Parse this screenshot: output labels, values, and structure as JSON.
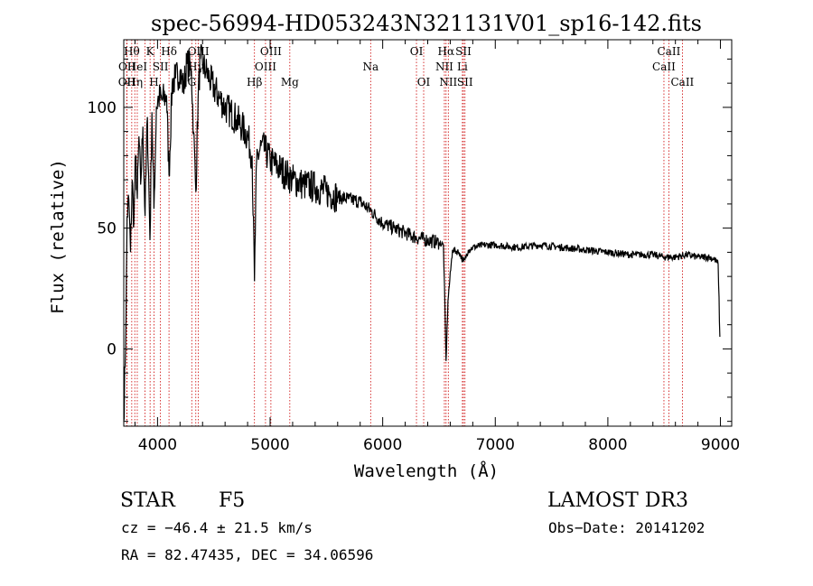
{
  "chart_data": {
    "type": "line",
    "title": "spec-56994-HD053243N321131V01_sp16-142.fits",
    "xlabel": "Wavelength (Å)",
    "ylabel": "Flux (relative)",
    "xlim": [
      3700,
      9100
    ],
    "ylim": [
      -32,
      128
    ],
    "xticks": [
      4000,
      5000,
      6000,
      7000,
      8000,
      9000
    ],
    "xtick_labels": [
      "4000",
      "5000",
      "6000",
      "7000",
      "8000",
      "9000"
    ],
    "yticks": [
      0,
      50,
      100
    ],
    "ytick_labels": [
      "0",
      "50",
      "100"
    ],
    "series": [
      {
        "name": "spectrum",
        "x": [
          3700,
          3720,
          3730,
          3745,
          3760,
          3775,
          3790,
          3805,
          3820,
          3835,
          3850,
          3870,
          3889,
          3910,
          3933,
          3950,
          3968,
          3990,
          4010,
          4040,
          4080,
          4102,
          4130,
          4160,
          4200,
          4230,
          4260,
          4300,
          4320,
          4340,
          4360,
          4380,
          4400,
          4430,
          4460,
          4500,
          4550,
          4600,
          4650,
          4700,
          4750,
          4800,
          4840,
          4861,
          4880,
          4920,
          4960,
          5000,
          5050,
          5100,
          5150,
          5200,
          5300,
          5400,
          5500,
          5600,
          5700,
          5800,
          5900,
          6000,
          6100,
          6200,
          6300,
          6400,
          6500,
          6540,
          6563,
          6580,
          6620,
          6680,
          6717,
          6731,
          6760,
          6800,
          6900,
          7000,
          7200,
          7400,
          7600,
          7800,
          8000,
          8200,
          8400,
          8500,
          8600,
          8700,
          8800,
          8900,
          8950,
          8980,
          8995
        ],
        "y": [
          -30,
          12,
          55,
          62,
          40,
          70,
          52,
          80,
          62,
          88,
          68,
          92,
          55,
          96,
          45,
          98,
          58,
          100,
          104,
          103,
          105,
          72,
          110,
          112,
          115,
          108,
          118,
          116,
          90,
          65,
          104,
          120,
          118,
          115,
          112,
          108,
          104,
          100,
          98,
          95,
          92,
          88,
          80,
          28,
          78,
          84,
          82,
          78,
          76,
          74,
          72,
          70,
          68,
          67,
          65,
          63,
          62,
          61,
          57,
          52,
          50,
          48,
          46,
          45,
          44,
          43,
          -5,
          20,
          41,
          40,
          36,
          37,
          41,
          42,
          43,
          43,
          42,
          43,
          42,
          41,
          40,
          39,
          39,
          38,
          38,
          39,
          38,
          38,
          37,
          35,
          5
        ]
      }
    ],
    "lines": [
      {
        "x": 3727,
        "label": "OII",
        "row": 2
      },
      {
        "x": 3729,
        "label": "OII",
        "row": 1
      },
      {
        "x": 3771,
        "label": "Hθ",
        "row": 0
      },
      {
        "x": 3798,
        "label": "Hη",
        "row": 2
      },
      {
        "x": 3820,
        "label": "HeI",
        "row": 1
      },
      {
        "x": 3889,
        "label": "",
        "row": 1
      },
      {
        "x": 3934,
        "label": "K",
        "row": 0
      },
      {
        "x": 3969,
        "label": "H",
        "row": 2
      },
      {
        "x": 4026,
        "label": "SII",
        "row": 1
      },
      {
        "x": 4102,
        "label": "Hδ",
        "row": 0
      },
      {
        "x": 4304,
        "label": "G",
        "row": 2
      },
      {
        "x": 4340,
        "label": "Hγ",
        "row": 1
      },
      {
        "x": 4363,
        "label": "OIII",
        "row": 0
      },
      {
        "x": 4861,
        "label": "Hβ",
        "row": 2
      },
      {
        "x": 4959,
        "label": "OIII",
        "row": 1
      },
      {
        "x": 5007,
        "label": "OIII",
        "row": 0
      },
      {
        "x": 5175,
        "label": "Mg",
        "row": 2
      },
      {
        "x": 5893,
        "label": "Na",
        "row": 1
      },
      {
        "x": 6300,
        "label": "OI",
        "row": 0
      },
      {
        "x": 6364,
        "label": "OI",
        "row": 2
      },
      {
        "x": 6548,
        "label": "NII",
        "row": 1
      },
      {
        "x": 6563,
        "label": "Hα",
        "row": 0
      },
      {
        "x": 6583,
        "label": "NII",
        "row": 2
      },
      {
        "x": 6708,
        "label": "Li",
        "row": 1
      },
      {
        "x": 6717,
        "label": "SII",
        "row": 0
      },
      {
        "x": 6731,
        "label": "SII",
        "row": 2
      },
      {
        "x": 8498,
        "label": "CaII",
        "row": 1
      },
      {
        "x": 8542,
        "label": "CaII",
        "row": 0
      },
      {
        "x": 8662,
        "label": "CaII",
        "row": 2
      }
    ]
  },
  "info": {
    "object_class": "STAR",
    "subclass": "F5",
    "survey": "LAMOST DR3",
    "cz": "cz = −46.4 ± 21.5 km/s",
    "obs_date": "Obs−Date: 20141202",
    "coords": "RA =  82.47435, DEC =  34.06596"
  },
  "colors": {
    "line_marker": "#cc0000",
    "spectrum": "#000000",
    "axes": "#000000"
  }
}
